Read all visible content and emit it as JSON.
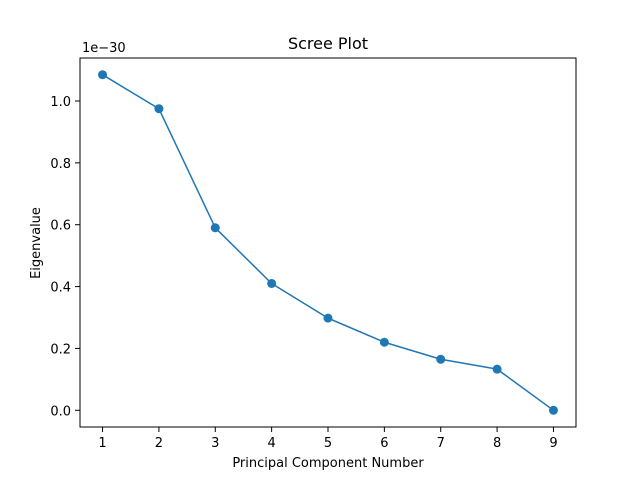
{
  "chart_data": {
    "type": "line",
    "title": "Scree Plot",
    "xlabel": "Principal Component Number",
    "ylabel": "Eigenvalue",
    "y_offset_label": "1e−30",
    "x": [
      1,
      2,
      3,
      4,
      5,
      6,
      7,
      8,
      9
    ],
    "series": [
      {
        "values": [
          1.085,
          0.975,
          0.59,
          0.41,
          0.298,
          0.22,
          0.165,
          0.133,
          0.0
        ]
      }
    ],
    "xlim": [
      0.6,
      9.4
    ],
    "ylim": [
      -0.054,
      1.139
    ],
    "xticks": [
      1,
      2,
      3,
      4,
      5,
      6,
      7,
      8,
      9
    ],
    "xtick_labels": [
      "1",
      "2",
      "3",
      "4",
      "5",
      "6",
      "7",
      "8",
      "9"
    ],
    "yticks": [
      0.0,
      0.2,
      0.4,
      0.6,
      0.8,
      1.0
    ],
    "ytick_labels": [
      "0.0",
      "0.2",
      "0.4",
      "0.6",
      "0.8",
      "1.0"
    ],
    "grid": false,
    "legend": "none",
    "line_color": "#1f77b4",
    "marker": "circle"
  }
}
